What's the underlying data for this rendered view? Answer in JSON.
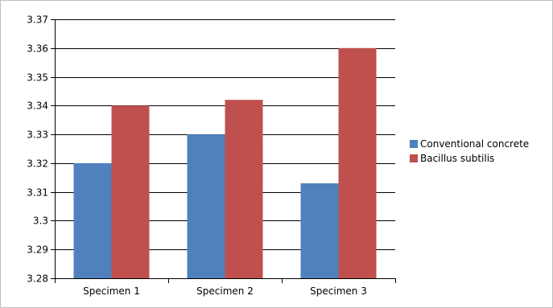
{
  "chart_data": {
    "type": "bar",
    "title": "",
    "xlabel": "",
    "ylabel": "",
    "categories": [
      "Specimen 1",
      "Specimen 2",
      "Specimen 3"
    ],
    "series": [
      {
        "name": "Conventional concrete",
        "color": "#4f81bd",
        "values": [
          3.32,
          3.33,
          3.313
        ]
      },
      {
        "name": "Bacillus subtilis",
        "color": "#c0504d",
        "values": [
          3.34,
          3.342,
          3.36
        ]
      }
    ],
    "ylim": [
      3.28,
      3.37
    ],
    "yticks": [
      "3.28",
      "3.29",
      "3.3",
      "3.31",
      "3.32",
      "3.33",
      "3.34",
      "3.35",
      "3.36",
      "3.37"
    ],
    "grid": true,
    "legend_position": "right"
  }
}
